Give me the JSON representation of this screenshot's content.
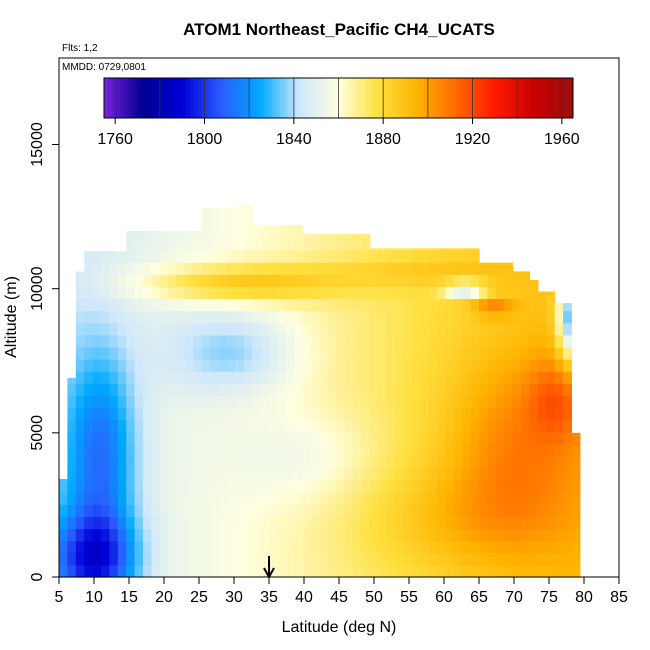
{
  "chart_data": {
    "type": "heatmap",
    "title": "ATOM1 Northeast_Pacific CH4_UCATS",
    "flights_label": "Flts: 1,2",
    "mmdd_label": "MMDD: 0729,0801",
    "xlabel": "Latitude (deg N)",
    "ylabel": "Altitude (m)",
    "xlim": [
      5,
      85
    ],
    "ylim": [
      0,
      18000
    ],
    "x_ticks": [
      "5",
      "10",
      "15",
      "20",
      "25",
      "30",
      "35",
      "40",
      "45",
      "50",
      "55",
      "60",
      "65",
      "70",
      "75",
      "80",
      "85"
    ],
    "y_ticks": [
      "0",
      "5000",
      "10000",
      "15000"
    ],
    "colorbar": {
      "range": [
        1755,
        1965
      ],
      "tick_labels": [
        "1760",
        "1800",
        "1840",
        "1880",
        "1920",
        "1960"
      ],
      "tick_values": [
        1760,
        1800,
        1840,
        1880,
        1920,
        1960
      ],
      "colors": [
        "#7a22e0",
        "#000092",
        "#0000d8",
        "#2a5cff",
        "#00aaff",
        "#cfe7fb",
        "#ffffe0",
        "#ffe040",
        "#ffb400",
        "#ff6a00",
        "#ff1a00",
        "#c80000",
        "#9a1010"
      ]
    },
    "arrow_latitude": 35,
    "colors": {
      "low": "#1e5cf0",
      "mid_low": "#6fb8f5",
      "mid": "#f4f8ff",
      "mid_high": "#ffd040",
      "high": "#ff4000",
      "max": "#a01010"
    }
  }
}
